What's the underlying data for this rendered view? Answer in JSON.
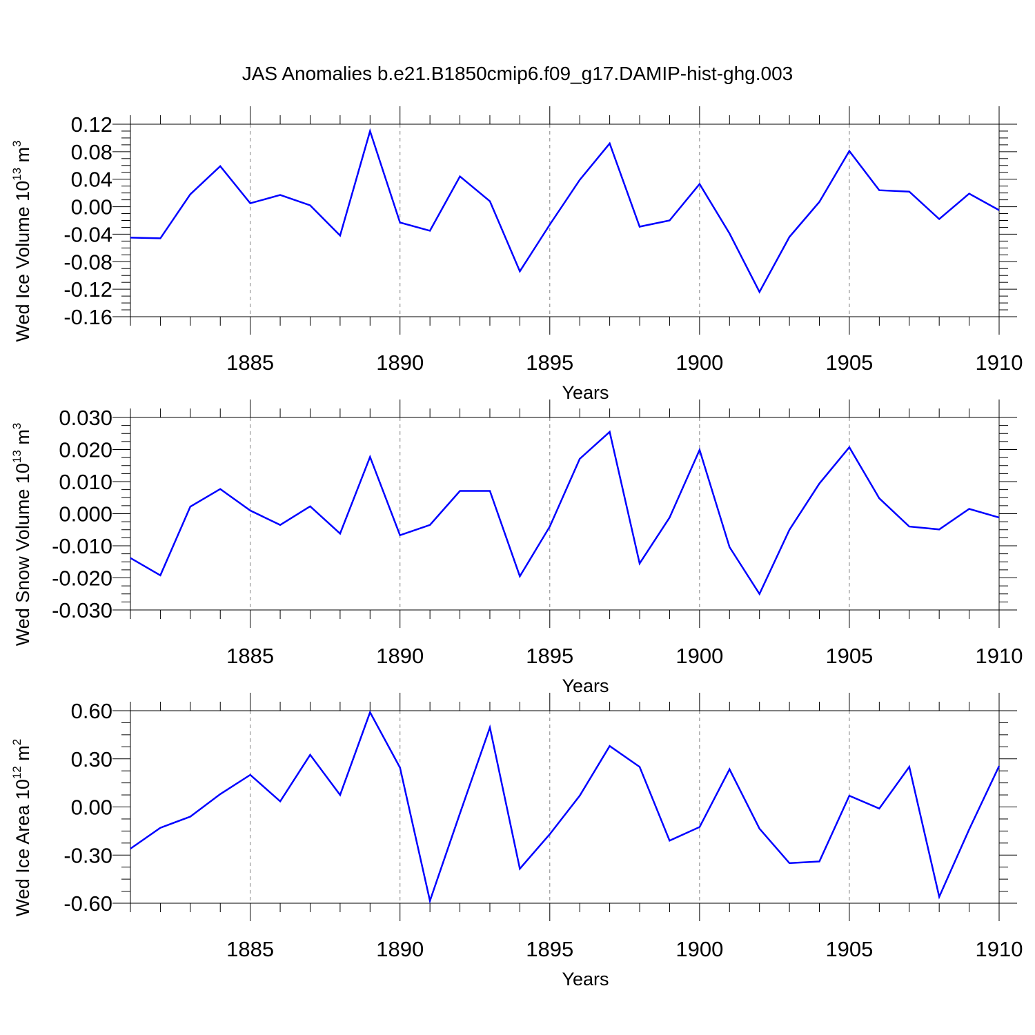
{
  "title": "JAS Anomalies b.e21.B1850cmip6.f09_g17.DAMIP-hist-ghg.003",
  "colors": {
    "line": "#0000ff",
    "axis": "#000000",
    "grid": "#808080"
  },
  "chart_data": [
    {
      "type": "line",
      "xlabel": "Years",
      "ylabel": "Wed Ice Volume 10",
      "ylabel_exp": "13",
      "ylabel_unit": "m",
      "ylabel_unit_exp": "3",
      "xlim": [
        1881,
        1910
      ],
      "ylim": [
        -0.16,
        0.12
      ],
      "yticks": [
        "0.12",
        "0.08",
        "0.04",
        "0.00",
        "-0.04",
        "-0.08",
        "-0.12",
        "-0.16"
      ],
      "ytick_values": [
        0.12,
        0.08,
        0.04,
        0.0,
        -0.04,
        -0.08,
        -0.12,
        -0.16
      ],
      "xticks": [
        "1885",
        "1890",
        "1895",
        "1900",
        "1905",
        "1910"
      ],
      "xtick_values": [
        1885,
        1890,
        1895,
        1900,
        1905,
        1910
      ],
      "grid": "vertical dashed at major x ticks",
      "x": [
        1881,
        1882,
        1883,
        1884,
        1885,
        1886,
        1887,
        1888,
        1889,
        1890,
        1891,
        1892,
        1893,
        1894,
        1895,
        1896,
        1897,
        1898,
        1899,
        1900,
        1901,
        1902,
        1903,
        1904,
        1905,
        1906,
        1907,
        1908,
        1909,
        1910
      ],
      "y": [
        -0.045,
        -0.046,
        0.018,
        0.059,
        0.005,
        0.017,
        0.002,
        -0.042,
        0.11,
        -0.023,
        -0.035,
        0.044,
        0.008,
        -0.094,
        -0.026,
        0.039,
        0.092,
        -0.029,
        -0.02,
        0.033,
        -0.039,
        -0.124,
        -0.044,
        0.007,
        0.081,
        0.024,
        0.022,
        -0.018,
        0.019,
        -0.005
      ]
    },
    {
      "type": "line",
      "xlabel": "Years",
      "ylabel": "Wed Snow Volume 10",
      "ylabel_exp": "13",
      "ylabel_unit": "m",
      "ylabel_unit_exp": "3",
      "xlim": [
        1881,
        1910
      ],
      "ylim": [
        -0.03,
        0.03
      ],
      "yticks": [
        "0.030",
        "0.020",
        "0.010",
        "0.000",
        "-0.010",
        "-0.020",
        "-0.030"
      ],
      "ytick_values": [
        0.03,
        0.02,
        0.01,
        0.0,
        -0.01,
        -0.02,
        -0.03
      ],
      "xticks": [
        "1885",
        "1890",
        "1895",
        "1900",
        "1905",
        "1910"
      ],
      "xtick_values": [
        1885,
        1890,
        1895,
        1900,
        1905,
        1910
      ],
      "grid": "vertical dashed at major x ticks",
      "x": [
        1881,
        1882,
        1883,
        1884,
        1885,
        1886,
        1887,
        1888,
        1889,
        1890,
        1891,
        1892,
        1893,
        1894,
        1895,
        1896,
        1897,
        1898,
        1899,
        1900,
        1901,
        1902,
        1903,
        1904,
        1905,
        1906,
        1907,
        1908,
        1909,
        1910
      ],
      "y": [
        -0.0138,
        -0.0192,
        0.0022,
        0.0077,
        0.001,
        -0.0035,
        0.0023,
        -0.0062,
        0.0177,
        -0.0067,
        -0.0035,
        0.0071,
        0.0071,
        -0.0195,
        -0.004,
        0.0171,
        0.0255,
        -0.0155,
        -0.0012,
        0.0199,
        -0.0104,
        -0.025,
        -0.005,
        0.0094,
        0.0207,
        0.0048,
        -0.004,
        -0.0049,
        0.0015,
        -0.0012
      ]
    },
    {
      "type": "line",
      "xlabel": "Years",
      "ylabel": "Wed Ice Area 10",
      "ylabel_exp": "12",
      "ylabel_unit": "m",
      "ylabel_unit_exp": "2",
      "xlim": [
        1881,
        1910
      ],
      "ylim": [
        -0.6,
        0.6
      ],
      "yticks": [
        "0.60",
        "0.30",
        "0.00",
        "-0.30",
        "-0.60"
      ],
      "ytick_values": [
        0.6,
        0.3,
        0.0,
        -0.3,
        -0.6
      ],
      "xticks": [
        "1885",
        "1890",
        "1895",
        "1900",
        "1905",
        "1910"
      ],
      "xtick_values": [
        1885,
        1890,
        1895,
        1900,
        1905,
        1910
      ],
      "grid": "vertical dashed at major x ticks",
      "x": [
        1881,
        1882,
        1883,
        1884,
        1885,
        1886,
        1887,
        1888,
        1889,
        1890,
        1891,
        1892,
        1893,
        1894,
        1895,
        1896,
        1897,
        1898,
        1899,
        1900,
        1901,
        1902,
        1903,
        1904,
        1905,
        1906,
        1907,
        1908,
        1909,
        1910
      ],
      "y": [
        -0.26,
        -0.13,
        -0.06,
        0.08,
        0.2,
        0.035,
        0.325,
        0.075,
        0.59,
        0.245,
        -0.585,
        -0.04,
        0.495,
        -0.385,
        -0.17,
        0.07,
        0.38,
        0.25,
        -0.21,
        -0.125,
        0.235,
        -0.135,
        -0.35,
        -0.34,
        0.07,
        -0.01,
        0.25,
        -0.56,
        -0.14,
        0.255
      ]
    }
  ]
}
